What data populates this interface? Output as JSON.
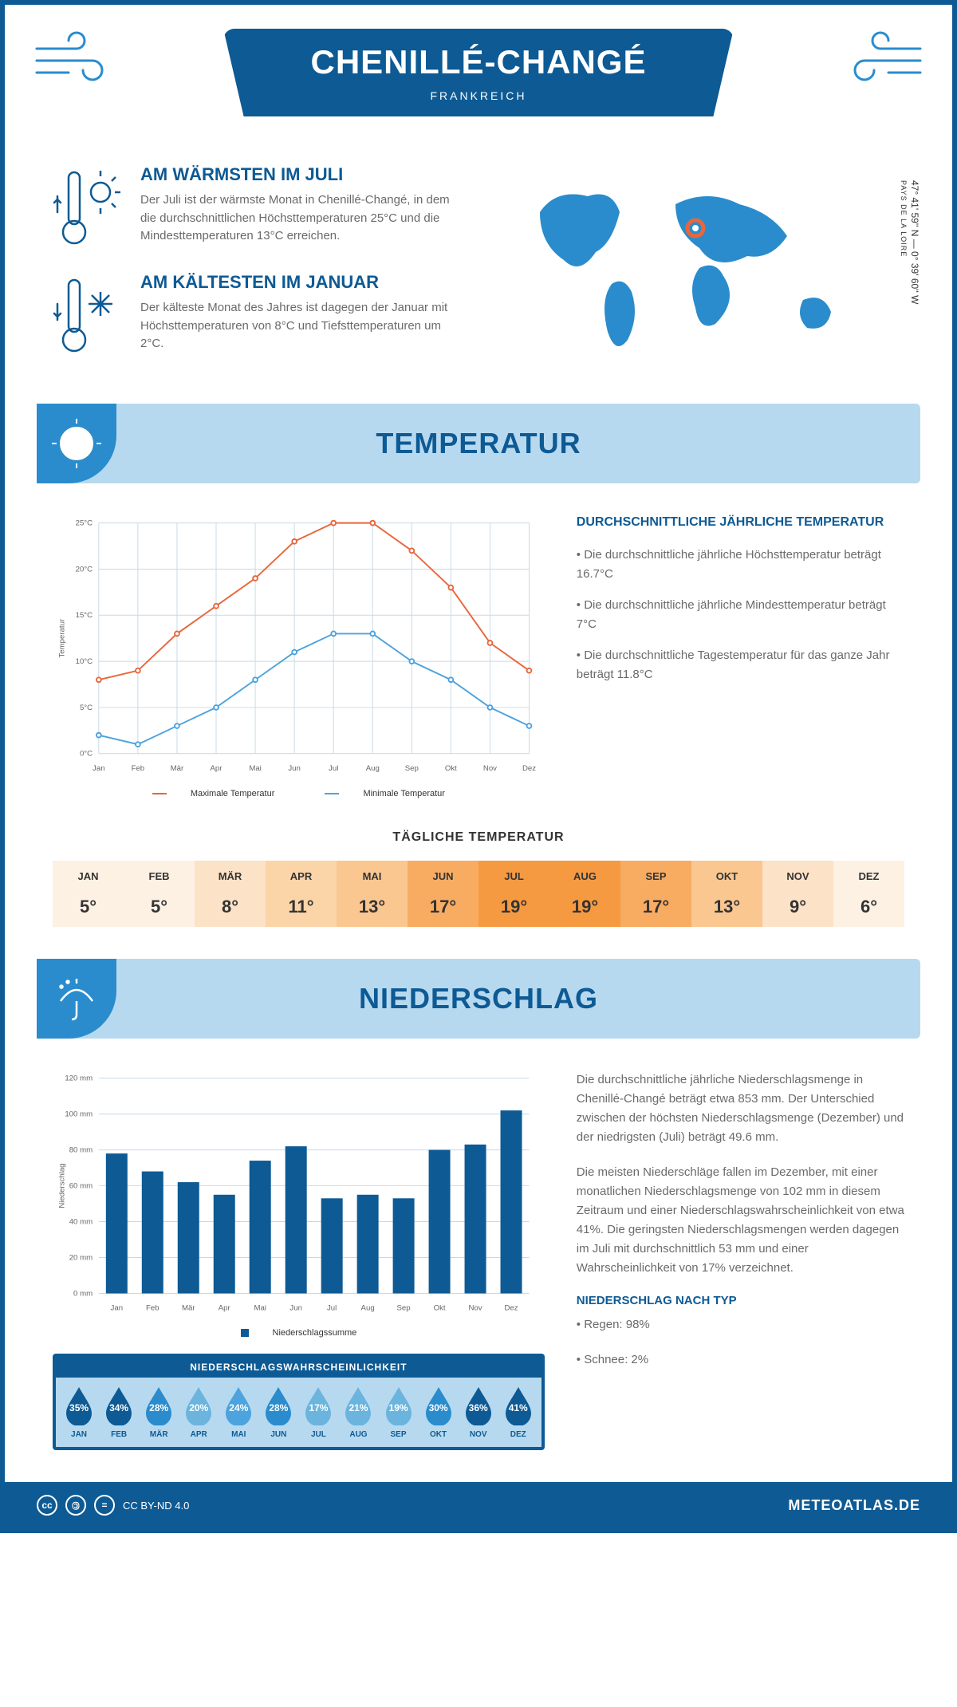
{
  "header": {
    "title": "CHENILLÉ-CHANGÉ",
    "subtitle": "FRANKREICH"
  },
  "intro": {
    "warm": {
      "title": "AM WÄRMSTEN IM JULI",
      "text": "Der Juli ist der wärmste Monat in Chenillé-Changé, in dem die durchschnittlichen Höchsttemperaturen 25°C und die Mindesttemperaturen 13°C erreichen."
    },
    "cold": {
      "title": "AM KÄLTESTEN IM JANUAR",
      "text": "Der kälteste Monat des Jahres ist dagegen der Januar mit Höchsttemperaturen von 8°C und Tiefsttemperaturen um 2°C."
    },
    "coords": "47° 41' 59'' N — 0° 39' 60'' W",
    "region": "PAYS DE LA LOIRE"
  },
  "temp_section": {
    "title": "TEMPERATUR",
    "chart": {
      "type": "line",
      "months": [
        "Jan",
        "Feb",
        "Mär",
        "Apr",
        "Mai",
        "Jun",
        "Jul",
        "Aug",
        "Sep",
        "Okt",
        "Nov",
        "Dez"
      ],
      "max_values": [
        8,
        9,
        13,
        16,
        19,
        23,
        25,
        25,
        22,
        18,
        12,
        9
      ],
      "min_values": [
        2,
        1,
        3,
        5,
        8,
        11,
        13,
        13,
        10,
        8,
        5,
        3
      ],
      "max_color": "#e8663c",
      "min_color": "#4ca3dd",
      "grid_color": "#c7d9e8",
      "ylim": [
        0,
        25
      ],
      "ytick_step": 5,
      "ylabel": "Temperatur",
      "legend_max": "Maximale Temperatur",
      "legend_min": "Minimale Temperatur"
    },
    "info_title": "DURCHSCHNITTLICHE JÄHRLICHE TEMPERATUR",
    "info_1": "• Die durchschnittliche jährliche Höchsttemperatur beträgt 16.7°C",
    "info_2": "• Die durchschnittliche jährliche Mindesttemperatur beträgt 7°C",
    "info_3": "• Die durchschnittliche Tagestemperatur für das ganze Jahr beträgt 11.8°C",
    "daily_title": "TÄGLICHE TEMPERATUR",
    "daily": {
      "months": [
        "JAN",
        "FEB",
        "MÄR",
        "APR",
        "MAI",
        "JUN",
        "JUL",
        "AUG",
        "SEP",
        "OKT",
        "NOV",
        "DEZ"
      ],
      "values": [
        "5°",
        "5°",
        "8°",
        "11°",
        "13°",
        "17°",
        "19°",
        "19°",
        "17°",
        "13°",
        "9°",
        "6°"
      ],
      "colors": [
        "#fdf1e4",
        "#fdf1e4",
        "#fce2c6",
        "#fbd4a8",
        "#fac790",
        "#f8ac62",
        "#f69a42",
        "#f69a42",
        "#f8ac62",
        "#fac790",
        "#fce2c6",
        "#fdf1e4"
      ]
    }
  },
  "precip_section": {
    "title": "NIEDERSCHLAG",
    "chart": {
      "type": "bar",
      "months": [
        "Jan",
        "Feb",
        "Mär",
        "Apr",
        "Mai",
        "Jun",
        "Jul",
        "Aug",
        "Sep",
        "Okt",
        "Nov",
        "Dez"
      ],
      "values": [
        78,
        68,
        62,
        55,
        74,
        82,
        53,
        55,
        53,
        80,
        83,
        102
      ],
      "bar_color": "#0d5a94",
      "grid_color": "#c7d9e8",
      "ylim": [
        0,
        120
      ],
      "ytick_step": 20,
      "ylabel": "Niederschlag",
      "legend": "Niederschlagssumme"
    },
    "text_1": "Die durchschnittliche jährliche Niederschlagsmenge in Chenillé-Changé beträgt etwa 853 mm. Der Unterschied zwischen der höchsten Niederschlagsmenge (Dezember) und der niedrigsten (Juli) beträgt 49.6 mm.",
    "text_2": "Die meisten Niederschläge fallen im Dezember, mit einer monatlichen Niederschlagsmenge von 102 mm in diesem Zeitraum und einer Niederschlagswahrscheinlichkeit von etwa 41%. Die geringsten Niederschlagsmengen werden dagegen im Juli mit durchschnittlich 53 mm und einer Wahrscheinlichkeit von 17% verzeichnet.",
    "type_title": "NIEDERSCHLAG NACH TYP",
    "type_1": "• Regen: 98%",
    "type_2": "• Schnee: 2%",
    "prob_title": "NIEDERSCHLAGSWAHRSCHEINLICHKEIT",
    "prob": {
      "months": [
        "JAN",
        "FEB",
        "MÄR",
        "APR",
        "MAI",
        "JUN",
        "JUL",
        "AUG",
        "SEP",
        "OKT",
        "NOV",
        "DEZ"
      ],
      "values": [
        "35%",
        "34%",
        "28%",
        "20%",
        "24%",
        "28%",
        "17%",
        "21%",
        "19%",
        "30%",
        "36%",
        "41%"
      ],
      "colors": [
        "#0d5a94",
        "#0d5a94",
        "#2a8ccc",
        "#6bb4de",
        "#4ca3dd",
        "#2a8ccc",
        "#6bb4de",
        "#6bb4de",
        "#6bb4de",
        "#2a8ccc",
        "#0d5a94",
        "#0d5a94"
      ]
    }
  },
  "footer": {
    "license": "CC BY-ND 4.0",
    "site": "METEOATLAS.DE"
  }
}
